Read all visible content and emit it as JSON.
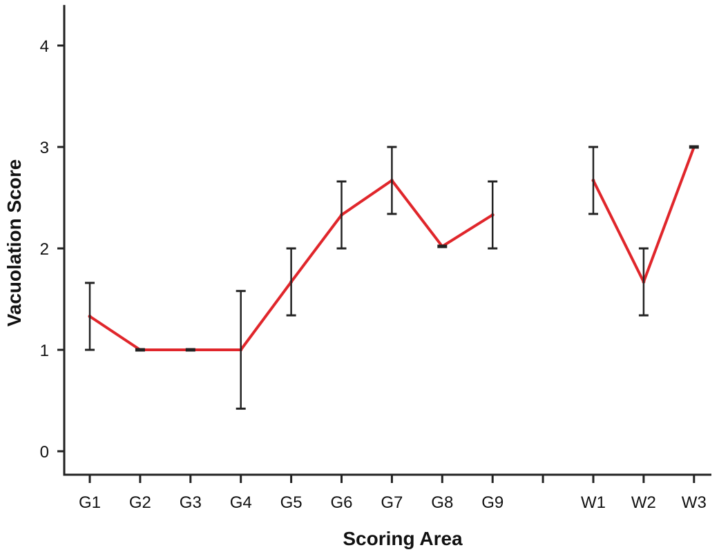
{
  "chart_data": {
    "type": "line",
    "xlabel": "Scoring Area",
    "ylabel": "Vacuolation Score",
    "ylim": [
      0,
      4.4
    ],
    "y_ticks": [
      "0",
      "1",
      "2",
      "3",
      "4"
    ],
    "grid": false,
    "categories": [
      "G1",
      "G2",
      "G3",
      "G4",
      "G5",
      "G6",
      "G7",
      "G8",
      "G9",
      "",
      "W1",
      "W2",
      "W3"
    ],
    "series": [
      {
        "values": [
          1.33,
          1.0,
          1.0,
          1.0,
          1.67,
          2.33,
          2.67,
          2.02,
          2.33,
          null,
          2.67,
          1.67,
          3.0
        ],
        "error": [
          0.33,
          0.0,
          0.0,
          0.58,
          0.33,
          0.33,
          0.33,
          0.0,
          0.33,
          null,
          0.33,
          0.33,
          0.0
        ]
      }
    ],
    "colors": {
      "line": "#e0262b",
      "error_bar": "#222222",
      "axis": "#222222"
    }
  }
}
